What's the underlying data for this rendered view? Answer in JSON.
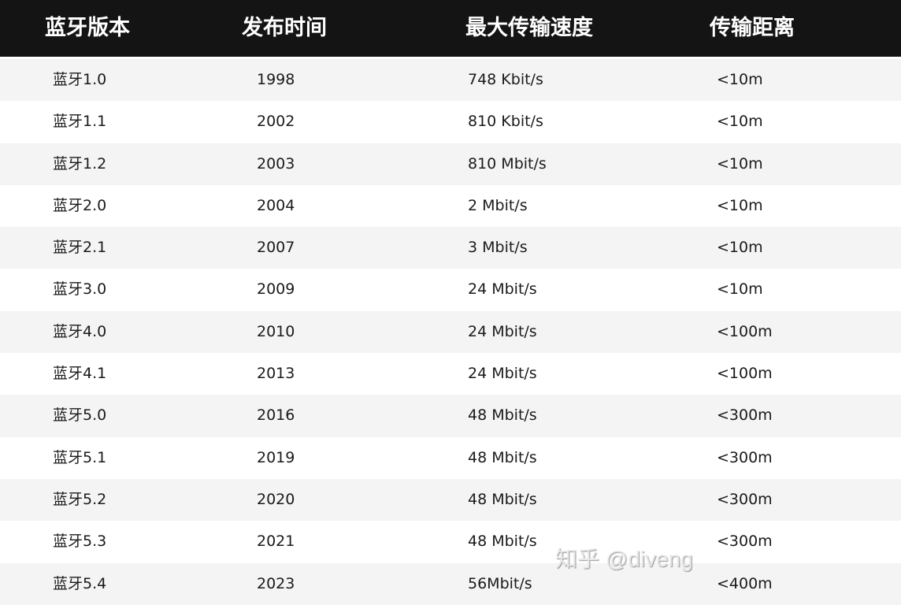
{
  "headers": [
    "蓝牙版本",
    "发布时间",
    "最大传输速度",
    "传输距离"
  ],
  "rows": [
    [
      "蓝牙1.0",
      "1998",
      "748 Kbit/s",
      "<10m"
    ],
    [
      "蓝牙1.1",
      "2002",
      "810 Kbit/s",
      "<10m"
    ],
    [
      "蓝牙1.2",
      "2003",
      "810 Mbit/s",
      "<10m"
    ],
    [
      "蓝牙2.0",
      "2004",
      "2 Mbit/s",
      "<10m"
    ],
    [
      "蓝牙2.1",
      "2007",
      "3 Mbit/s",
      "<10m"
    ],
    [
      "蓝牙3.0",
      "2009",
      "24 Mbit/s",
      "<10m"
    ],
    [
      "蓝牙4.0",
      "2010",
      "24 Mbit/s",
      "<100m"
    ],
    [
      "蓝牙4.1",
      "2013",
      "24 Mbit/s",
      "<100m"
    ],
    [
      "蓝牙5.0",
      "2016",
      "48 Mbit/s",
      "<300m"
    ],
    [
      "蓝牙5.1",
      "2019",
      "48 Mbit/s",
      "<300m"
    ],
    [
      "蓝牙5.2",
      "2020",
      "48 Mbit/s",
      "<300m"
    ],
    [
      "蓝牙5.3",
      "2021",
      "48 Mbit/s",
      "<300m"
    ],
    [
      "蓝牙5.4",
      "2023",
      "56Mbit/s",
      "<400m"
    ]
  ],
  "watermark": "知乎 @diveng",
  "colors": {
    "header_bg": "#141414",
    "stripe": "#f4f4f4"
  }
}
